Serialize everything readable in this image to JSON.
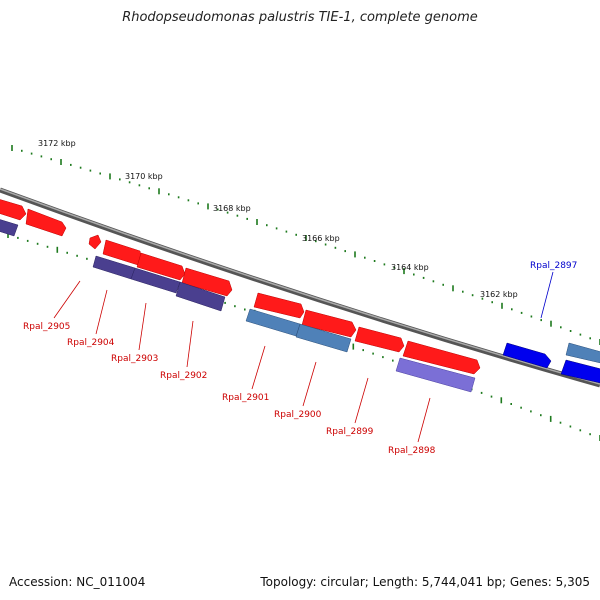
{
  "header": {
    "title": "Rhodopseudomonas palustris TIE-1, complete genome"
  },
  "footer": {
    "accession": "Accession: NC_011004",
    "summary": "Topology: circular; Length: 5,744,041 bp; Genes: 5,305"
  },
  "ruler": {
    "ticks": [
      {
        "label": "3172 kbp"
      },
      {
        "label": "3170 kbp"
      },
      {
        "label": "3168 kbp"
      },
      {
        "label": "3166 kbp"
      },
      {
        "label": "3164 kbp"
      },
      {
        "label": "3162 kbp"
      }
    ]
  },
  "genes": [
    {
      "label": "Rpal_2905",
      "color": "#cc0000"
    },
    {
      "label": "Rpal_2904",
      "color": "#cc0000"
    },
    {
      "label": "Rpal_2903",
      "color": "#cc0000"
    },
    {
      "label": "Rpal_2902",
      "color": "#cc0000"
    },
    {
      "label": "Rpal_2901",
      "color": "#cc0000"
    },
    {
      "label": "Rpal_2900",
      "color": "#cc0000"
    },
    {
      "label": "Rpal_2899",
      "color": "#cc0000"
    },
    {
      "label": "Rpal_2898",
      "color": "#cc0000"
    },
    {
      "label": "Rpal_2897",
      "color": "#0000cc"
    }
  ],
  "colors": {
    "backbone": "#7a7a7a",
    "ruler_ticks": "#1e7a1e",
    "cds_forward": "#ff1a1a",
    "cds_reverse": "#0000ee",
    "feature_dark": "#4a3f8f",
    "feature_steel": "#4f81b8",
    "feature_lavender": "#7b6fd6"
  }
}
